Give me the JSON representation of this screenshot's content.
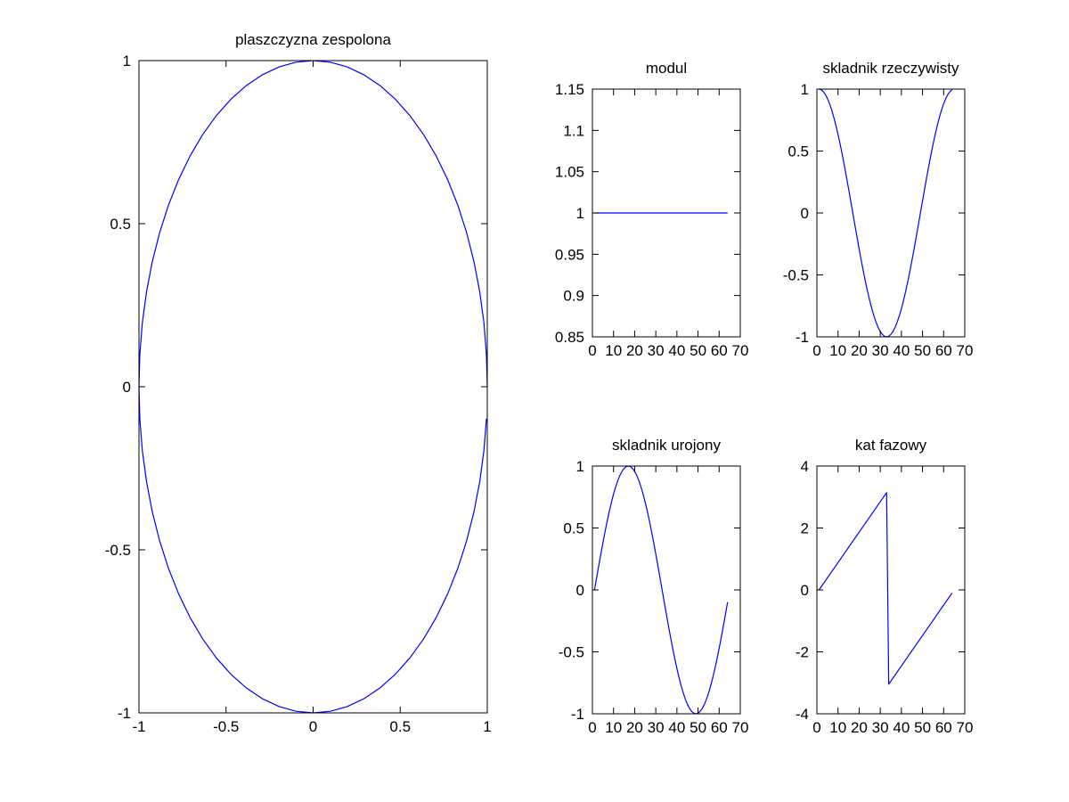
{
  "line_color": "#0000ff",
  "chart_data": [
    {
      "type": "line",
      "title": "plaszczyzna zespolona",
      "xlabel": "",
      "ylabel": "",
      "xlim": [
        -1,
        1
      ],
      "ylim": [
        -1,
        1
      ],
      "xticks": [
        -1,
        -0.5,
        0,
        0.5,
        1
      ],
      "xtick_labels": [
        "-1",
        "-0.5",
        "0",
        "0.5",
        "1"
      ],
      "yticks": [
        -1,
        -0.5,
        0,
        0.5,
        1
      ],
      "ytick_labels": [
        "-1",
        "-0.5",
        "0",
        "0.5",
        "1"
      ],
      "grid": false,
      "series": [
        {
          "x": [
            1,
            0.9951,
            0.9808,
            0.9569,
            0.9239,
            0.8819,
            0.8315,
            0.773,
            0.7071,
            0.6344,
            0.5556,
            0.4714,
            0.3827,
            0.2903,
            0.1951,
            0.098,
            0,
            -0.098,
            -0.1951,
            -0.2903,
            -0.3827,
            -0.4714,
            -0.5556,
            -0.6344,
            -0.7071,
            -0.773,
            -0.8315,
            -0.8819,
            -0.9239,
            -0.9569,
            -0.9808,
            -0.9951,
            -1,
            -0.9951,
            -0.9808,
            -0.9569,
            -0.9239,
            -0.8819,
            -0.8315,
            -0.773,
            -0.7071,
            -0.6344,
            -0.5556,
            -0.4714,
            -0.3827,
            -0.2903,
            -0.1951,
            -0.098,
            0,
            0.098,
            0.1951,
            0.2903,
            0.3827,
            0.4714,
            0.5556,
            0.6344,
            0.7071,
            0.773,
            0.8315,
            0.8819,
            0.9239,
            0.9569,
            0.9808,
            0.9951
          ],
          "y": [
            0,
            0.098,
            0.1951,
            0.2903,
            0.3827,
            0.4714,
            0.5556,
            0.6344,
            0.7071,
            0.773,
            0.8315,
            0.8819,
            0.9239,
            0.9569,
            0.9808,
            0.9951,
            1,
            0.9951,
            0.9808,
            0.9569,
            0.9239,
            0.8819,
            0.8315,
            0.773,
            0.7071,
            0.6344,
            0.5556,
            0.4714,
            0.3827,
            0.2903,
            0.1951,
            0.098,
            0,
            -0.098,
            -0.1951,
            -0.2903,
            -0.3827,
            -0.4714,
            -0.5556,
            -0.6344,
            -0.7071,
            -0.773,
            -0.8315,
            -0.8819,
            -0.9239,
            -0.9569,
            -0.9808,
            -0.9951,
            -1,
            -0.9951,
            -0.9808,
            -0.9569,
            -0.9239,
            -0.8819,
            -0.8315,
            -0.773,
            -0.7071,
            -0.6344,
            -0.5556,
            -0.4714,
            -0.3827,
            -0.2903,
            -0.1951,
            -0.098
          ]
        }
      ]
    },
    {
      "type": "line",
      "title": "modul",
      "xlabel": "",
      "ylabel": "",
      "xlim": [
        0,
        70
      ],
      "ylim": [
        0.85,
        1.15
      ],
      "xticks": [
        0,
        10,
        20,
        30,
        40,
        50,
        60,
        70
      ],
      "xtick_labels": [
        "0",
        "10",
        "20",
        "30",
        "40",
        "50",
        "60",
        "70"
      ],
      "yticks": [
        0.85,
        0.9,
        0.95,
        1,
        1.05,
        1.1,
        1.15
      ],
      "ytick_labels": [
        "0.85",
        "0.9",
        "0.95",
        "1",
        "1.05",
        "1.1",
        "1.15"
      ],
      "grid": false,
      "series": [
        {
          "x": [
            1,
            64
          ],
          "y": [
            1,
            1
          ]
        }
      ]
    },
    {
      "type": "line",
      "title": "skladnik rzeczywisty",
      "xlabel": "",
      "ylabel": "",
      "xlim": [
        0,
        70
      ],
      "ylim": [
        -1,
        1
      ],
      "xticks": [
        0,
        10,
        20,
        30,
        40,
        50,
        60,
        70
      ],
      "xtick_labels": [
        "0",
        "10",
        "20",
        "30",
        "40",
        "50",
        "60",
        "70"
      ],
      "yticks": [
        -1,
        -0.5,
        0,
        0.5,
        1
      ],
      "ytick_labels": [
        "-1",
        "-0.5",
        "0",
        "0.5",
        "1"
      ],
      "grid": false,
      "series": [
        {
          "x": [
            1,
            2,
            3,
            4,
            5,
            6,
            7,
            8,
            9,
            10,
            11,
            12,
            13,
            14,
            15,
            16,
            17,
            18,
            19,
            20,
            21,
            22,
            23,
            24,
            25,
            26,
            27,
            28,
            29,
            30,
            31,
            32,
            33,
            34,
            35,
            36,
            37,
            38,
            39,
            40,
            41,
            42,
            43,
            44,
            45,
            46,
            47,
            48,
            49,
            50,
            51,
            52,
            53,
            54,
            55,
            56,
            57,
            58,
            59,
            60,
            61,
            62,
            63,
            64
          ],
          "y": [
            1,
            0.9951,
            0.9808,
            0.9569,
            0.9239,
            0.8819,
            0.8315,
            0.773,
            0.7071,
            0.6344,
            0.5556,
            0.4714,
            0.3827,
            0.2903,
            0.1951,
            0.098,
            0,
            -0.098,
            -0.1951,
            -0.2903,
            -0.3827,
            -0.4714,
            -0.5556,
            -0.6344,
            -0.7071,
            -0.773,
            -0.8315,
            -0.8819,
            -0.9239,
            -0.9569,
            -0.9808,
            -0.9951,
            -1,
            -0.9951,
            -0.9808,
            -0.9569,
            -0.9239,
            -0.8819,
            -0.8315,
            -0.773,
            -0.7071,
            -0.6344,
            -0.5556,
            -0.4714,
            -0.3827,
            -0.2903,
            -0.1951,
            -0.098,
            0,
            0.098,
            0.1951,
            0.2903,
            0.3827,
            0.4714,
            0.5556,
            0.6344,
            0.7071,
            0.773,
            0.8315,
            0.8819,
            0.9239,
            0.9569,
            0.9808,
            0.9951
          ]
        }
      ]
    },
    {
      "type": "line",
      "title": "skladnik urojony",
      "xlabel": "",
      "ylabel": "",
      "xlim": [
        0,
        70
      ],
      "ylim": [
        -1,
        1
      ],
      "xticks": [
        0,
        10,
        20,
        30,
        40,
        50,
        60,
        70
      ],
      "xtick_labels": [
        "0",
        "10",
        "20",
        "30",
        "40",
        "50",
        "60",
        "70"
      ],
      "yticks": [
        -1,
        -0.5,
        0,
        0.5,
        1
      ],
      "ytick_labels": [
        "-1",
        "-0.5",
        "0",
        "0.5",
        "1"
      ],
      "grid": false,
      "series": [
        {
          "x": [
            1,
            2,
            3,
            4,
            5,
            6,
            7,
            8,
            9,
            10,
            11,
            12,
            13,
            14,
            15,
            16,
            17,
            18,
            19,
            20,
            21,
            22,
            23,
            24,
            25,
            26,
            27,
            28,
            29,
            30,
            31,
            32,
            33,
            34,
            35,
            36,
            37,
            38,
            39,
            40,
            41,
            42,
            43,
            44,
            45,
            46,
            47,
            48,
            49,
            50,
            51,
            52,
            53,
            54,
            55,
            56,
            57,
            58,
            59,
            60,
            61,
            62,
            63,
            64
          ],
          "y": [
            0,
            0.098,
            0.1951,
            0.2903,
            0.3827,
            0.4714,
            0.5556,
            0.6344,
            0.7071,
            0.773,
            0.8315,
            0.8819,
            0.9239,
            0.9569,
            0.9808,
            0.9951,
            1,
            0.9951,
            0.9808,
            0.9569,
            0.9239,
            0.8819,
            0.8315,
            0.773,
            0.7071,
            0.6344,
            0.5556,
            0.4714,
            0.3827,
            0.2903,
            0.1951,
            0.098,
            0,
            -0.098,
            -0.1951,
            -0.2903,
            -0.3827,
            -0.4714,
            -0.5556,
            -0.6344,
            -0.7071,
            -0.773,
            -0.8315,
            -0.8819,
            -0.9239,
            -0.9569,
            -0.9808,
            -0.9951,
            -1,
            -0.9951,
            -0.9808,
            -0.9569,
            -0.9239,
            -0.8819,
            -0.8315,
            -0.773,
            -0.7071,
            -0.6344,
            -0.5556,
            -0.4714,
            -0.3827,
            -0.2903,
            -0.1951,
            -0.098
          ]
        }
      ]
    },
    {
      "type": "line",
      "title": "kat fazowy",
      "xlabel": "",
      "ylabel": "",
      "xlim": [
        0,
        70
      ],
      "ylim": [
        -4,
        4
      ],
      "xticks": [
        0,
        10,
        20,
        30,
        40,
        50,
        60,
        70
      ],
      "xtick_labels": [
        "0",
        "10",
        "20",
        "30",
        "40",
        "50",
        "60",
        "70"
      ],
      "yticks": [
        -4,
        -2,
        0,
        2,
        4
      ],
      "ytick_labels": [
        "-4",
        "-2",
        "0",
        "2",
        "4"
      ],
      "grid": false,
      "series": [
        {
          "x": [
            1,
            33,
            34,
            64
          ],
          "y": [
            0,
            3.1416,
            -3.0434,
            -0.0982
          ]
        }
      ]
    }
  ]
}
